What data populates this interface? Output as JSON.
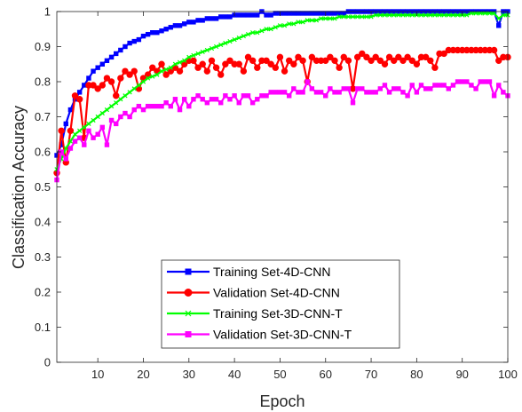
{
  "chart_data": {
    "type": "line",
    "xlabel": "Epoch",
    "ylabel": "Classification Accuracy",
    "xlim": [
      1,
      100
    ],
    "ylim": [
      0,
      1
    ],
    "x_ticks": [
      10,
      20,
      30,
      40,
      50,
      60,
      70,
      80,
      90,
      100
    ],
    "y_ticks": [
      0,
      0.1,
      0.2,
      0.3,
      0.4,
      0.5,
      0.6,
      0.7,
      0.8,
      0.9,
      1
    ],
    "legend_position": "bottom-center",
    "grid": false,
    "series": [
      {
        "name": "Training Set-4D-CNN",
        "color": "#0000ff",
        "marker": "square",
        "values": [
          0.59,
          0.62,
          0.68,
          0.72,
          0.75,
          0.77,
          0.79,
          0.81,
          0.83,
          0.84,
          0.85,
          0.86,
          0.87,
          0.88,
          0.89,
          0.9,
          0.91,
          0.915,
          0.92,
          0.93,
          0.935,
          0.94,
          0.94,
          0.945,
          0.95,
          0.955,
          0.96,
          0.96,
          0.965,
          0.97,
          0.97,
          0.975,
          0.975,
          0.98,
          0.98,
          0.98,
          0.985,
          0.985,
          0.985,
          0.99,
          0.99,
          0.99,
          0.99,
          0.99,
          0.99,
          1.0,
          0.99,
          0.99,
          0.995,
          0.995,
          0.995,
          0.995,
          0.995,
          0.995,
          0.995,
          0.995,
          0.995,
          0.995,
          0.995,
          0.995,
          0.995,
          0.995,
          0.995,
          0.995,
          1.0,
          1.0,
          1.0,
          1.0,
          1.0,
          1.0,
          1.0,
          1.0,
          1.0,
          1.0,
          1.0,
          1.0,
          1.0,
          1.0,
          1.0,
          1.0,
          1.0,
          1.0,
          1.0,
          1.0,
          1.0,
          1.0,
          1.0,
          1.0,
          1.0,
          1.0,
          1.0,
          1.0,
          1.0,
          1.0,
          1.0,
          1.0,
          1.0,
          0.96,
          1.0,
          1.0
        ]
      },
      {
        "name": "Validation Set-4D-CNN",
        "color": "#ff0000",
        "marker": "circle",
        "values": [
          0.54,
          0.66,
          0.57,
          0.66,
          0.76,
          0.75,
          0.64,
          0.79,
          0.79,
          0.78,
          0.79,
          0.81,
          0.8,
          0.76,
          0.81,
          0.83,
          0.82,
          0.83,
          0.78,
          0.81,
          0.82,
          0.84,
          0.83,
          0.85,
          0.82,
          0.83,
          0.84,
          0.83,
          0.85,
          0.86,
          0.86,
          0.84,
          0.85,
          0.83,
          0.86,
          0.84,
          0.82,
          0.85,
          0.86,
          0.85,
          0.85,
          0.83,
          0.87,
          0.86,
          0.84,
          0.86,
          0.86,
          0.85,
          0.84,
          0.87,
          0.83,
          0.86,
          0.85,
          0.87,
          0.86,
          0.8,
          0.87,
          0.86,
          0.86,
          0.86,
          0.87,
          0.86,
          0.84,
          0.87,
          0.86,
          0.78,
          0.87,
          0.88,
          0.87,
          0.86,
          0.87,
          0.86,
          0.85,
          0.87,
          0.86,
          0.87,
          0.86,
          0.87,
          0.86,
          0.85,
          0.87,
          0.87,
          0.86,
          0.84,
          0.88,
          0.88,
          0.89,
          0.89,
          0.89,
          0.89,
          0.89,
          0.89,
          0.89,
          0.89,
          0.89,
          0.89,
          0.89,
          0.86,
          0.87,
          0.87
        ]
      },
      {
        "name": "Training Set-3D-CNN-T",
        "color": "#00ff00",
        "marker": "x",
        "values": [
          0.55,
          0.58,
          0.61,
          0.63,
          0.65,
          0.66,
          0.67,
          0.68,
          0.69,
          0.7,
          0.71,
          0.72,
          0.73,
          0.74,
          0.75,
          0.76,
          0.77,
          0.78,
          0.79,
          0.8,
          0.81,
          0.815,
          0.82,
          0.83,
          0.835,
          0.84,
          0.85,
          0.855,
          0.86,
          0.87,
          0.875,
          0.88,
          0.885,
          0.89,
          0.895,
          0.9,
          0.905,
          0.91,
          0.915,
          0.92,
          0.925,
          0.93,
          0.935,
          0.94,
          0.94,
          0.945,
          0.95,
          0.95,
          0.955,
          0.96,
          0.96,
          0.965,
          0.965,
          0.97,
          0.97,
          0.975,
          0.975,
          0.975,
          0.98,
          0.98,
          0.98,
          0.98,
          0.985,
          0.985,
          0.985,
          0.985,
          0.985,
          0.985,
          0.985,
          0.985,
          0.99,
          0.99,
          0.99,
          0.99,
          0.99,
          0.99,
          0.99,
          0.99,
          0.99,
          0.99,
          0.99,
          0.99,
          0.99,
          0.99,
          0.99,
          0.99,
          0.99,
          0.99,
          0.99,
          0.99,
          0.99,
          0.995,
          0.995,
          0.995,
          0.995,
          0.995,
          0.995,
          0.98,
          0.99,
          0.99
        ]
      },
      {
        "name": "Validation Set-3D-CNN-T",
        "color": "#ff00ff",
        "marker": "square",
        "values": [
          0.52,
          0.6,
          0.58,
          0.61,
          0.63,
          0.64,
          0.62,
          0.66,
          0.64,
          0.65,
          0.67,
          0.62,
          0.69,
          0.68,
          0.7,
          0.71,
          0.7,
          0.72,
          0.73,
          0.72,
          0.73,
          0.73,
          0.73,
          0.73,
          0.74,
          0.73,
          0.75,
          0.72,
          0.75,
          0.73,
          0.75,
          0.76,
          0.75,
          0.74,
          0.75,
          0.75,
          0.74,
          0.76,
          0.75,
          0.76,
          0.74,
          0.76,
          0.76,
          0.74,
          0.75,
          0.76,
          0.76,
          0.77,
          0.77,
          0.77,
          0.77,
          0.76,
          0.78,
          0.77,
          0.77,
          0.8,
          0.78,
          0.77,
          0.77,
          0.76,
          0.78,
          0.77,
          0.77,
          0.78,
          0.78,
          0.74,
          0.78,
          0.78,
          0.77,
          0.77,
          0.77,
          0.78,
          0.79,
          0.77,
          0.78,
          0.78,
          0.77,
          0.76,
          0.79,
          0.77,
          0.79,
          0.78,
          0.78,
          0.79,
          0.79,
          0.79,
          0.78,
          0.79,
          0.8,
          0.8,
          0.8,
          0.79,
          0.78,
          0.8,
          0.8,
          0.8,
          0.76,
          0.79,
          0.77,
          0.76
        ]
      }
    ]
  }
}
